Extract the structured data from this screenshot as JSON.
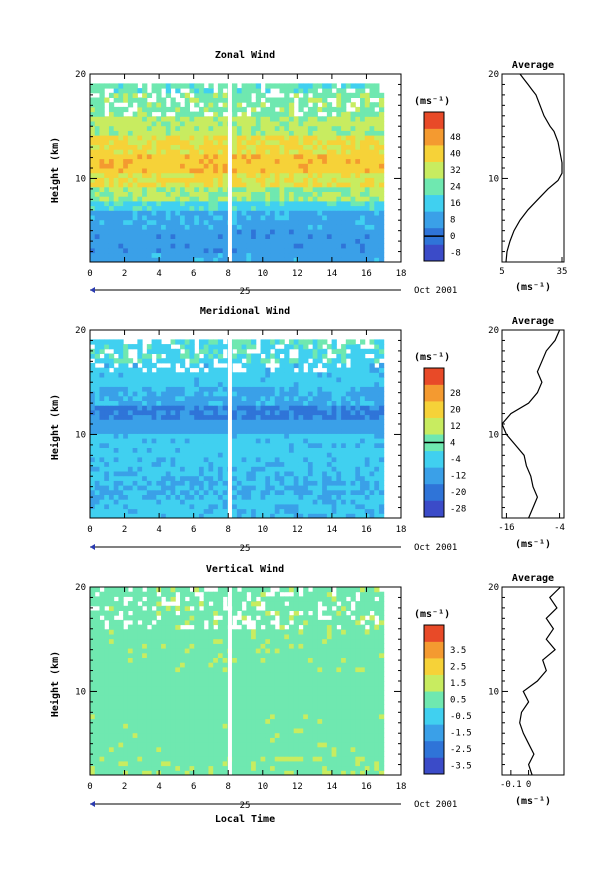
{
  "figure": {
    "xlabel": "Local Time",
    "date_label": "Oct 2001",
    "day_label": "25"
  },
  "chart_data": [
    {
      "type": "heatmap",
      "title": "Zonal Wind",
      "ylabel": "Height (km)",
      "xlim": [
        0,
        18
      ],
      "ylim": [
        2,
        20
      ],
      "x_ticks": [
        0,
        2,
        4,
        6,
        8,
        10,
        12,
        14,
        16,
        18
      ],
      "y_ticks": [
        10,
        20
      ],
      "colorbar_unit": "(ms⁻¹)",
      "colorbar_levels": [
        -8,
        0,
        8,
        16,
        24,
        32,
        40,
        48
      ],
      "colorbar_ticks": [
        "-8",
        "0",
        "8",
        "16",
        "24",
        "32",
        "40",
        "48"
      ],
      "zero_line": 0,
      "gap_time": 8.1,
      "data_end_time": 17,
      "profiles": [
        {
          "y0": 2,
          "y1": 3,
          "v": 5
        },
        {
          "y0": 3,
          "y1": 5,
          "v": 3
        },
        {
          "y0": 5,
          "y1": 7,
          "v": 6
        },
        {
          "y0": 7,
          "y1": 8,
          "v": 14
        },
        {
          "y0": 8,
          "y1": 9,
          "v": 24
        },
        {
          "y0": 9,
          "y1": 10.5,
          "v": 32
        },
        {
          "y0": 10.5,
          "y1": 12.5,
          "v": 38
        },
        {
          "y0": 12.5,
          "y1": 14,
          "v": 33
        },
        {
          "y0": 14,
          "y1": 16,
          "v": 26
        },
        {
          "y0": 16,
          "y1": 18,
          "v": 22
        },
        {
          "y0": 18,
          "y1": 19,
          "v": 18
        }
      ],
      "avg": {
        "title": "Average",
        "unit": "(ms⁻¹)",
        "xlim": [
          5,
          36
        ],
        "x_ticks": [
          5,
          35
        ],
        "y_ticks": [
          10,
          20
        ],
        "points": [
          [
            7,
            2
          ],
          [
            7.5,
            3
          ],
          [
            9,
            4
          ],
          [
            11,
            5
          ],
          [
            14,
            6
          ],
          [
            18,
            7
          ],
          [
            23,
            8
          ],
          [
            28,
            9
          ],
          [
            33,
            9.8
          ],
          [
            35,
            10.5
          ],
          [
            35,
            11.5
          ],
          [
            34,
            12.5
          ],
          [
            33,
            13.5
          ],
          [
            31,
            14.5
          ],
          [
            29,
            15
          ],
          [
            26,
            16
          ],
          [
            24,
            17
          ],
          [
            22,
            18
          ],
          [
            20,
            18.5
          ],
          [
            18,
            19
          ],
          [
            16,
            19.5
          ],
          [
            14,
            20
          ]
        ]
      }
    },
    {
      "type": "heatmap",
      "title": "Meridional Wind",
      "ylabel": "Height (km)",
      "xlim": [
        0,
        18
      ],
      "ylim": [
        2,
        20
      ],
      "x_ticks": [
        0,
        2,
        4,
        6,
        8,
        10,
        12,
        14,
        16,
        18
      ],
      "y_ticks": [
        10,
        20
      ],
      "colorbar_unit": "(ms⁻¹)",
      "colorbar_levels": [
        -28,
        -20,
        -12,
        -4,
        4,
        12,
        20,
        28
      ],
      "colorbar_ticks": [
        "-28",
        "-20",
        "-12",
        "-4",
        "4",
        "12",
        "20",
        "28"
      ],
      "zero_line": 0,
      "gap_time": 8.1,
      "data_end_time": 17,
      "profiles": [
        {
          "y0": 2,
          "y1": 4,
          "v": -10
        },
        {
          "y0": 4,
          "y1": 6,
          "v": -12
        },
        {
          "y0": 6,
          "y1": 8,
          "v": -10
        },
        {
          "y0": 8,
          "y1": 10,
          "v": -9
        },
        {
          "y0": 10,
          "y1": 11.3,
          "v": -16
        },
        {
          "y0": 11.3,
          "y1": 12.8,
          "v": -21
        },
        {
          "y0": 12.8,
          "y1": 14.5,
          "v": -13
        },
        {
          "y0": 14.5,
          "y1": 17,
          "v": -9
        },
        {
          "y0": 17,
          "y1": 19,
          "v": -5
        }
      ],
      "avg": {
        "title": "Average",
        "unit": "(ms⁻¹)",
        "xlim": [
          -17,
          -3
        ],
        "x_ticks": [
          -16,
          -4
        ],
        "y_ticks": [
          10,
          20
        ],
        "points": [
          [
            -11,
            2
          ],
          [
            -10,
            3
          ],
          [
            -9,
            4
          ],
          [
            -10,
            5
          ],
          [
            -10.5,
            6
          ],
          [
            -11.5,
            7
          ],
          [
            -12,
            8
          ],
          [
            -14,
            9
          ],
          [
            -16,
            10
          ],
          [
            -17,
            11
          ],
          [
            -15,
            12
          ],
          [
            -11,
            13
          ],
          [
            -9,
            14
          ],
          [
            -8,
            15
          ],
          [
            -9,
            16
          ],
          [
            -8,
            17
          ],
          [
            -7,
            18
          ],
          [
            -5,
            19
          ],
          [
            -4,
            20
          ]
        ]
      }
    },
    {
      "type": "heatmap",
      "title": "Vertical Wind",
      "ylabel": "Height (km)",
      "xlim": [
        0,
        18
      ],
      "ylim": [
        2,
        20
      ],
      "x_ticks": [
        0,
        2,
        4,
        6,
        8,
        10,
        12,
        14,
        16,
        18
      ],
      "y_ticks": [
        10,
        20
      ],
      "colorbar_unit": "(ms⁻¹)",
      "colorbar_levels": [
        -3.5,
        -2.5,
        -1.5,
        -0.5,
        0.5,
        1.5,
        2.5,
        3.5
      ],
      "colorbar_ticks": [
        "-3.5",
        "-2.5",
        "-1.5",
        "-0.5",
        "0.5",
        "1.5",
        "2.5",
        "3.5"
      ],
      "zero_line": null,
      "gap_time": 8.1,
      "data_end_time": 17,
      "profiles": [
        {
          "y0": 2,
          "y1": 4,
          "v": 0.2
        },
        {
          "y0": 4,
          "y1": 8,
          "v": 0.1
        },
        {
          "y0": 8,
          "y1": 12,
          "v": 0
        },
        {
          "y0": 12,
          "y1": 16,
          "v": 0.1
        },
        {
          "y0": 16,
          "y1": 20,
          "v": 0.15
        }
      ],
      "avg": {
        "title": "Average",
        "unit": "(ms⁻¹)",
        "xlim": [
          -0.15,
          0.2
        ],
        "x_ticks": [
          -0.1,
          0.0
        ],
        "y_ticks": [
          10,
          20
        ],
        "points": [
          [
            0.02,
            2
          ],
          [
            0.0,
            3
          ],
          [
            0.03,
            4
          ],
          [
            0.0,
            5
          ],
          [
            -0.03,
            6
          ],
          [
            -0.05,
            7
          ],
          [
            -0.04,
            8
          ],
          [
            0.0,
            9
          ],
          [
            -0.03,
            10
          ],
          [
            0.05,
            11
          ],
          [
            0.1,
            12
          ],
          [
            0.08,
            13
          ],
          [
            0.15,
            14
          ],
          [
            0.1,
            15
          ],
          [
            0.14,
            16
          ],
          [
            0.1,
            17
          ],
          [
            0.16,
            18
          ],
          [
            0.12,
            19
          ],
          [
            0.18,
            20
          ]
        ]
      }
    }
  ]
}
